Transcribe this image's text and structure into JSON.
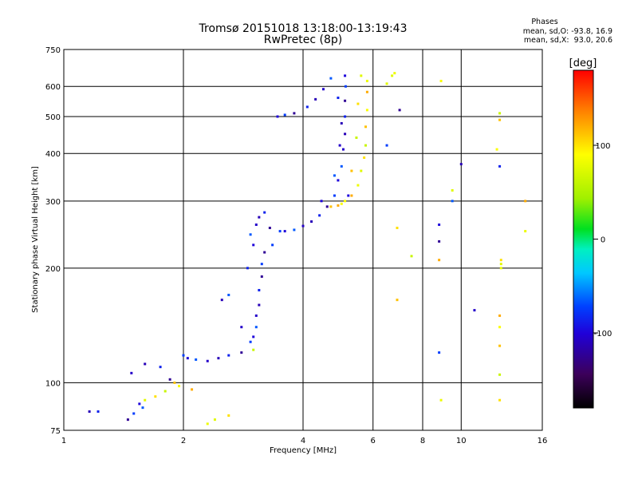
{
  "header": {
    "title_line1": "Tromsø 20151018 13:18:00-13:19:43",
    "title_line2": "RwPretec (8p)"
  },
  "phases_legend": {
    "title": "Phases",
    "line_o": "mean, sd,O: -93.8, 16.9",
    "line_x": "mean, sd,X:  93.0, 20.6"
  },
  "colorbar": {
    "label": "[deg]",
    "range": [
      -180,
      180
    ],
    "ticks": [
      "100",
      "0",
      "-100"
    ],
    "tick_values": [
      100,
      0,
      -100
    ]
  },
  "chart_data": {
    "type": "scatter",
    "title": "Tromsø 20151018 13:18:00-13:19:43",
    "subtitle": "RwPretec (8p)",
    "xlabel": "Frequency [MHz]",
    "ylabel": "Stationary phase Virtual Height [km]",
    "xscale": "log",
    "yscale": "log",
    "xlim": [
      1,
      16
    ],
    "ylim": [
      75,
      750
    ],
    "x_ticks": [
      1,
      2,
      4,
      6,
      8,
      10,
      16
    ],
    "x_tick_labels": [
      "1",
      "2",
      "4",
      "6",
      "8",
      "10",
      "16"
    ],
    "y_ticks": [
      75,
      100,
      200,
      300,
      400,
      500,
      600,
      750
    ],
    "y_tick_labels": [
      "75",
      "100",
      "200",
      "300",
      "400",
      "500",
      "600",
      "750"
    ],
    "grid": true,
    "color_dimension": "phase [deg]",
    "series": [
      {
        "name": "O",
        "phase_mean": -93.8,
        "points": [
          [
            1.16,
            84
          ],
          [
            1.22,
            84
          ],
          [
            1.45,
            80
          ],
          [
            1.5,
            83
          ],
          [
            1.55,
            88
          ],
          [
            1.58,
            86
          ],
          [
            1.48,
            106
          ],
          [
            1.6,
            112
          ],
          [
            1.75,
            110
          ],
          [
            1.85,
            102
          ],
          [
            2.0,
            118
          ],
          [
            2.05,
            116
          ],
          [
            2.15,
            115
          ],
          [
            2.3,
            114
          ],
          [
            2.45,
            116
          ],
          [
            2.6,
            118
          ],
          [
            2.8,
            120
          ],
          [
            2.95,
            128
          ],
          [
            3.0,
            132
          ],
          [
            3.05,
            140
          ],
          [
            3.05,
            150
          ],
          [
            3.1,
            160
          ],
          [
            3.1,
            175
          ],
          [
            3.15,
            190
          ],
          [
            3.15,
            205
          ],
          [
            3.0,
            230
          ],
          [
            2.95,
            245
          ],
          [
            3.05,
            260
          ],
          [
            3.1,
            272
          ],
          [
            3.2,
            280
          ],
          [
            3.3,
            255
          ],
          [
            3.5,
            250
          ],
          [
            3.6,
            250
          ],
          [
            3.8,
            252
          ],
          [
            4.0,
            258
          ],
          [
            4.2,
            265
          ],
          [
            4.4,
            275
          ],
          [
            4.6,
            290
          ],
          [
            4.8,
            310
          ],
          [
            4.9,
            340
          ],
          [
            5.0,
            370
          ],
          [
            5.05,
            410
          ],
          [
            5.1,
            450
          ],
          [
            5.1,
            500
          ],
          [
            5.1,
            550
          ],
          [
            5.12,
            600
          ],
          [
            5.1,
            640
          ],
          [
            4.7,
            630
          ],
          [
            4.5,
            590
          ],
          [
            4.3,
            555
          ],
          [
            4.1,
            530
          ],
          [
            3.8,
            510
          ],
          [
            3.6,
            505
          ],
          [
            3.45,
            500
          ],
          [
            2.6,
            170
          ],
          [
            2.8,
            140
          ],
          [
            2.5,
            165
          ],
          [
            2.9,
            200
          ],
          [
            3.2,
            220
          ],
          [
            3.35,
            230
          ],
          [
            4.45,
            300
          ],
          [
            4.8,
            350
          ],
          [
            4.95,
            420
          ],
          [
            5.0,
            480
          ],
          [
            4.9,
            560
          ],
          [
            8.8,
            235
          ],
          [
            8.8,
            120
          ],
          [
            8.8,
            260
          ],
          [
            9.5,
            300
          ],
          [
            10.8,
            155
          ],
          [
            10.0,
            375
          ],
          [
            12.5,
            370
          ],
          [
            7.0,
            520
          ],
          [
            6.5,
            420
          ],
          [
            5.2,
            310
          ]
        ]
      },
      {
        "name": "X",
        "phase_mean": 93.0,
        "points": [
          [
            1.6,
            90
          ],
          [
            1.7,
            92
          ],
          [
            1.8,
            95
          ],
          [
            1.9,
            100
          ],
          [
            1.95,
            98
          ],
          [
            2.1,
            96
          ],
          [
            2.3,
            78
          ],
          [
            2.4,
            80
          ],
          [
            2.6,
            82
          ],
          [
            3.0,
            122
          ],
          [
            4.7,
            290
          ],
          [
            5.0,
            295
          ],
          [
            5.3,
            310
          ],
          [
            5.5,
            330
          ],
          [
            5.6,
            360
          ],
          [
            5.7,
            390
          ],
          [
            5.75,
            420
          ],
          [
            5.75,
            470
          ],
          [
            5.8,
            520
          ],
          [
            5.8,
            580
          ],
          [
            5.8,
            620
          ],
          [
            5.6,
            640
          ],
          [
            5.5,
            540
          ],
          [
            5.45,
            440
          ],
          [
            5.3,
            360
          ],
          [
            5.1,
            300
          ],
          [
            4.9,
            292
          ],
          [
            6.8,
            650
          ],
          [
            6.7,
            640
          ],
          [
            6.9,
            255
          ],
          [
            7.5,
            215
          ],
          [
            6.9,
            165
          ],
          [
            8.9,
            620
          ],
          [
            8.8,
            210
          ],
          [
            8.9,
            90
          ],
          [
            9.5,
            320
          ],
          [
            12.5,
            90
          ],
          [
            12.5,
            105
          ],
          [
            12.5,
            125
          ],
          [
            12.5,
            140
          ],
          [
            12.5,
            150
          ],
          [
            12.6,
            200
          ],
          [
            12.6,
            205
          ],
          [
            12.6,
            210
          ],
          [
            12.5,
            510
          ],
          [
            12.5,
            490
          ],
          [
            12.3,
            410
          ],
          [
            14.5,
            300
          ],
          [
            14.5,
            250
          ],
          [
            6.5,
            610
          ]
        ]
      }
    ]
  }
}
